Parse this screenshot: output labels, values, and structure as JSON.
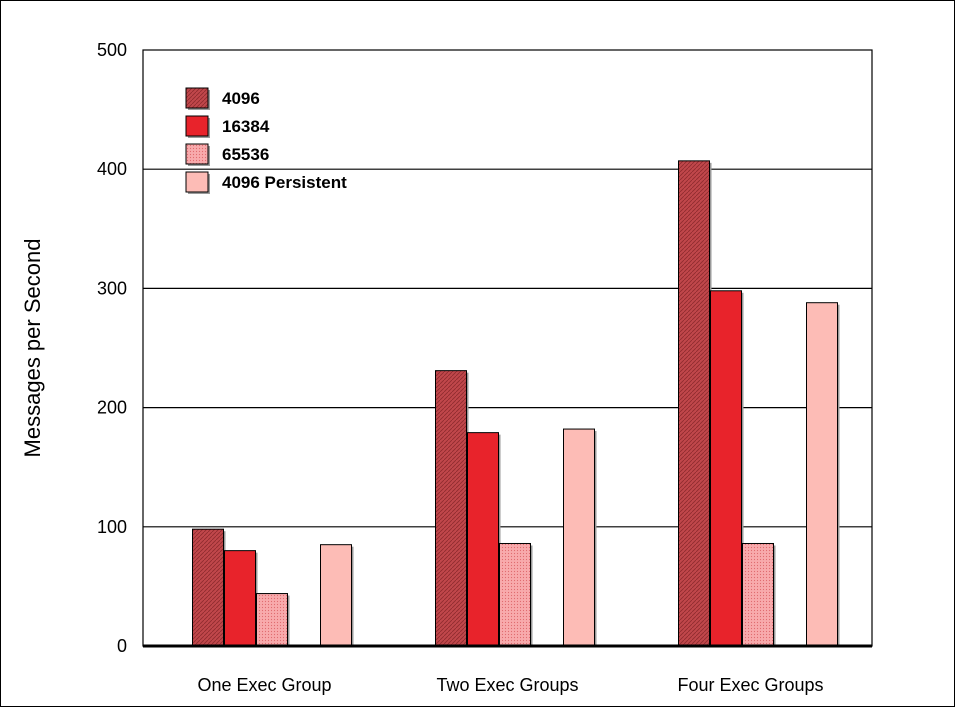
{
  "chart_data": {
    "type": "bar",
    "title": "",
    "xlabel": "",
    "ylabel": "Messages per Second",
    "ylim": [
      0,
      500
    ],
    "yticks": [
      0,
      100,
      200,
      300,
      400,
      500
    ],
    "grid": true,
    "legend_position": "top-left",
    "categories": [
      "One Exec Group",
      "Two Exec Groups",
      "Four Exec Groups"
    ],
    "series": [
      {
        "name": "4096",
        "values": [
          98,
          231,
          407
        ],
        "color": "#c0474b",
        "pattern": "hatched"
      },
      {
        "name": "16384",
        "values": [
          80,
          179,
          298
        ],
        "color": "#e8232b",
        "pattern": "solid"
      },
      {
        "name": "65536",
        "values": [
          44,
          86,
          86
        ],
        "color": "#f59da0",
        "pattern": "dotted"
      },
      {
        "name": "4096 Persistent",
        "values": [
          85,
          182,
          288
        ],
        "color": "#fdbcb6",
        "pattern": "solid"
      }
    ]
  }
}
